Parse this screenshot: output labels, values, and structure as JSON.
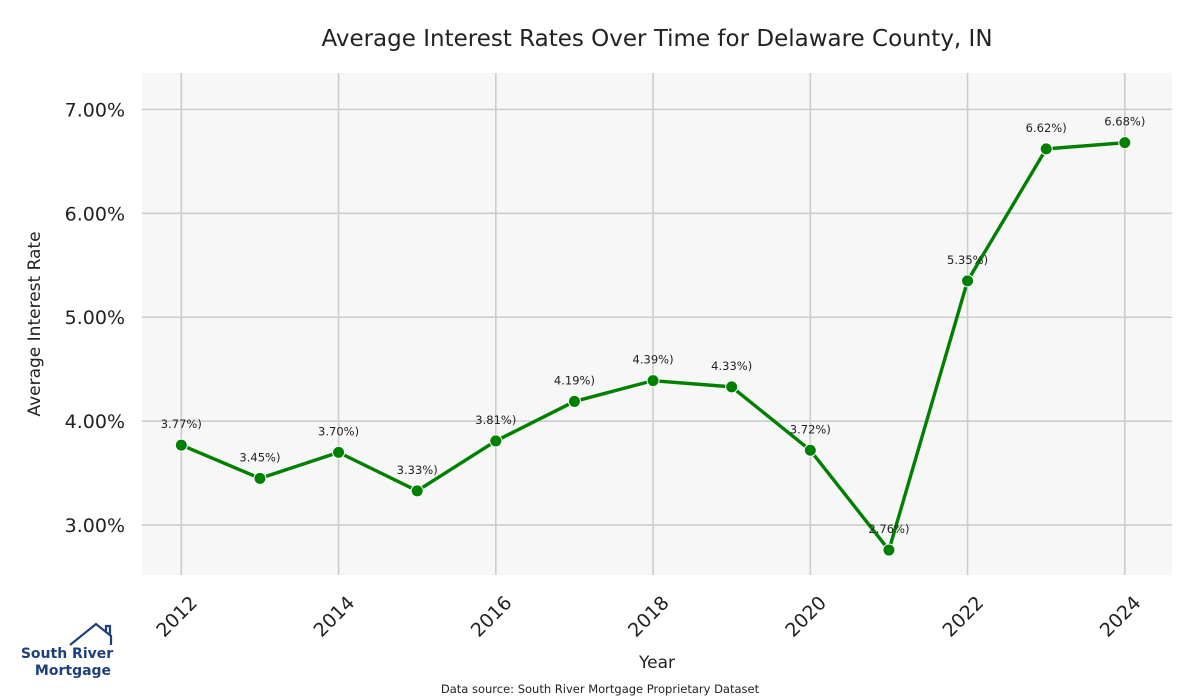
{
  "chart_data": {
    "type": "line",
    "title": "Average Interest Rates Over Time for Delaware County, IN",
    "xlabel": "Year",
    "ylabel": "Average Interest Rate",
    "x": [
      2012,
      2013,
      2014,
      2015,
      2016,
      2017,
      2018,
      2019,
      2020,
      2021,
      2022,
      2023,
      2024
    ],
    "series": [
      {
        "name": "Average Interest Rate",
        "values": [
          3.77,
          3.45,
          3.7,
          3.33,
          3.81,
          4.19,
          4.39,
          4.33,
          3.72,
          2.76,
          5.35,
          6.62,
          6.68
        ],
        "labels": [
          "3.77%)",
          "3.45%)",
          "3.70%)",
          "3.33%)",
          "3.81%)",
          "4.19%)",
          "4.39%)",
          "4.33%)",
          "3.72%)",
          "2.76%)",
          "5.35%)",
          "6.62%)",
          "6.68%)"
        ],
        "color": "#008000"
      }
    ],
    "xticks": [
      "2012",
      "2014",
      "2016",
      "2018",
      "2020",
      "2022",
      "2024"
    ],
    "yticks": [
      {
        "value": 3.0,
        "label": "3.00%"
      },
      {
        "value": 4.0,
        "label": "4.00%"
      },
      {
        "value": 5.0,
        "label": "5.00%"
      },
      {
        "value": 6.0,
        "label": "6.00%"
      },
      {
        "value": 7.0,
        "label": "7.00%"
      }
    ],
    "xlim": [
      2011.5,
      2024.6
    ],
    "ylim": [
      2.52,
      7.35
    ],
    "grid": true
  },
  "footer": {
    "source": "Data source: South River Mortgage Proprietary Dataset"
  },
  "logo": {
    "line1": "South River",
    "line2": "Mortgage",
    "color": "#1f3f7a"
  },
  "colors": {
    "plot_background": "#f7f7f7",
    "grid": "#cccccc"
  }
}
